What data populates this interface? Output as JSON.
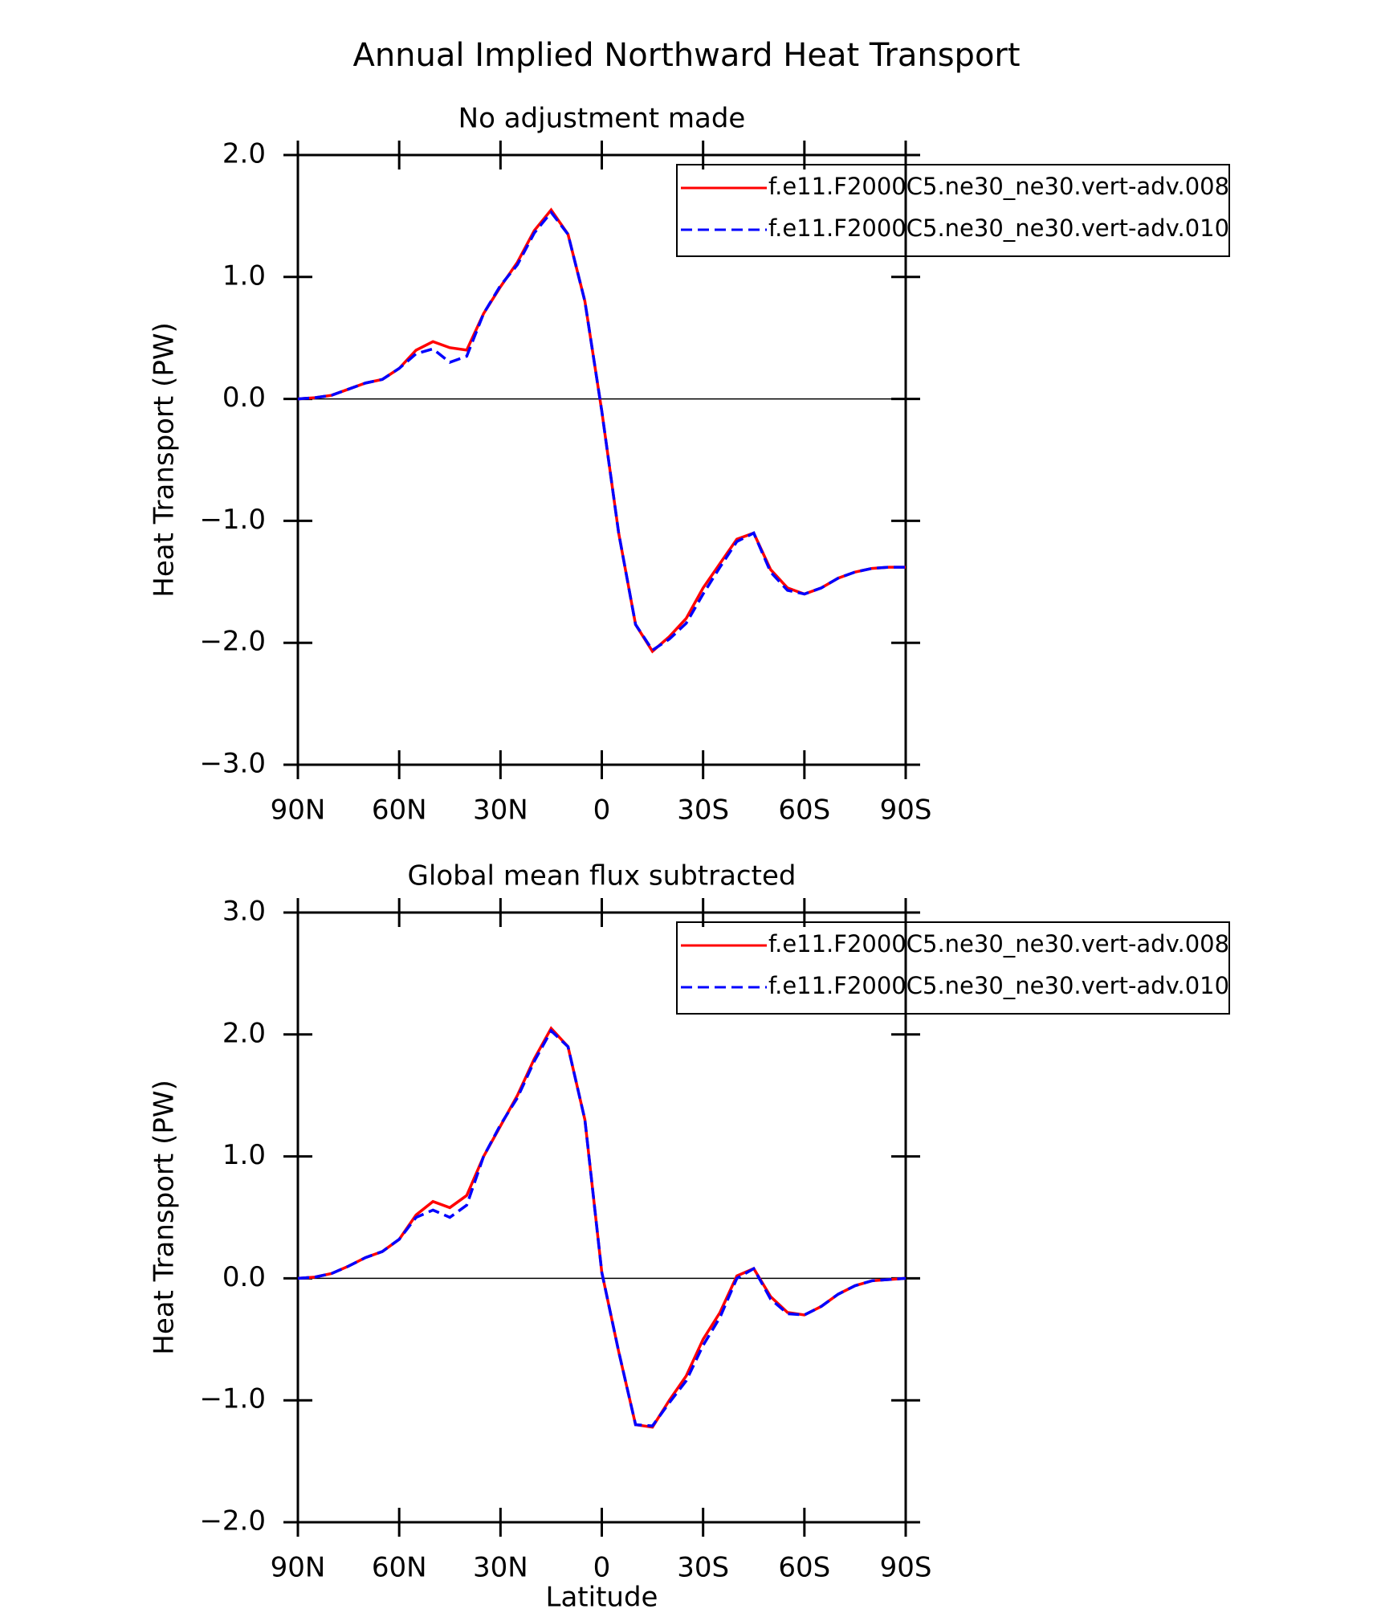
{
  "title": "Annual Implied Northward Heat Transport",
  "chart_data": [
    {
      "type": "line",
      "title": "No adjustment made",
      "ylabel": "Heat Transport (PW)",
      "x": [
        90,
        85,
        80,
        75,
        70,
        65,
        60,
        55,
        50,
        45,
        40,
        35,
        30,
        25,
        20,
        15,
        10,
        5,
        0,
        -5,
        -10,
        -15,
        -20,
        -25,
        -30,
        -35,
        -40,
        -45,
        -50,
        -55,
        -60,
        -65,
        -70,
        -75,
        -80,
        -85,
        -90
      ],
      "series": [
        {
          "name": "f.e11.F2000C5.ne30_ne30.vert-adv.008",
          "color": "#ff0000",
          "dash": false,
          "values": [
            0,
            0.01,
            0.03,
            0.08,
            0.13,
            0.16,
            0.25,
            0.4,
            0.47,
            0.42,
            0.4,
            0.7,
            0.92,
            1.12,
            1.38,
            1.55,
            1.35,
            0.8,
            -0.1,
            -1.1,
            -1.85,
            -2.07,
            -1.95,
            -1.8,
            -1.55,
            -1.35,
            -1.15,
            -1.1,
            -1.4,
            -1.55,
            -1.6,
            -1.55,
            -1.47,
            -1.42,
            -1.39,
            -1.38,
            -1.38
          ]
        },
        {
          "name": "f.e11.F2000C5.ne30_ne30.vert-adv.010",
          "color": "#0000ff",
          "dash": true,
          "values": [
            0,
            0.01,
            0.03,
            0.08,
            0.13,
            0.16,
            0.25,
            0.37,
            0.41,
            0.3,
            0.35,
            0.7,
            0.93,
            1.1,
            1.36,
            1.53,
            1.35,
            0.8,
            -0.1,
            -1.1,
            -1.85,
            -2.06,
            -1.97,
            -1.84,
            -1.6,
            -1.38,
            -1.17,
            -1.1,
            -1.42,
            -1.57,
            -1.6,
            -1.55,
            -1.47,
            -1.42,
            -1.39,
            -1.38,
            -1.38
          ]
        }
      ],
      "xlim": [
        90,
        -90
      ],
      "xticks": [
        {
          "value": 90,
          "label": "90N"
        },
        {
          "value": 60,
          "label": "60N"
        },
        {
          "value": 30,
          "label": "30N"
        },
        0,
        {
          "value": -30,
          "label": "30S"
        },
        {
          "value": -60,
          "label": "60S"
        },
        {
          "value": -90,
          "label": "90S"
        }
      ],
      "ylim": [
        -3,
        2
      ],
      "yticks": [
        {
          "value": -3,
          "label": "−3.0"
        },
        {
          "value": -2,
          "label": "−2.0"
        },
        {
          "value": -1,
          "label": "−1.0"
        },
        {
          "value": 0,
          "label": "0.0"
        },
        {
          "value": 1,
          "label": "1.0"
        },
        {
          "value": 2,
          "label": "2.0"
        }
      ],
      "ref_line": 0,
      "legend": "upper right"
    },
    {
      "type": "line",
      "title": "Global mean flux subtracted",
      "ylabel": "Heat Transport (PW)",
      "xlabel": "Latitude",
      "x": [
        90,
        85,
        80,
        75,
        70,
        65,
        60,
        55,
        50,
        45,
        40,
        35,
        30,
        25,
        20,
        15,
        10,
        5,
        0,
        -5,
        -10,
        -15,
        -20,
        -25,
        -30,
        -35,
        -40,
        -45,
        -50,
        -55,
        -60,
        -65,
        -70,
        -75,
        -80,
        -85,
        -90
      ],
      "series": [
        {
          "name": "f.e11.F2000C5.ne30_ne30.vert-adv.008",
          "color": "#ff0000",
          "dash": false,
          "values": [
            0,
            0.01,
            0.04,
            0.1,
            0.17,
            0.22,
            0.32,
            0.52,
            0.63,
            0.58,
            0.68,
            1.0,
            1.25,
            1.5,
            1.8,
            2.05,
            1.9,
            1.3,
            0.05,
            -0.6,
            -1.2,
            -1.22,
            -1.0,
            -0.8,
            -0.5,
            -0.28,
            0.02,
            0.08,
            -0.15,
            -0.28,
            -0.3,
            -0.23,
            -0.13,
            -0.06,
            -0.02,
            -0.01,
            0
          ]
        },
        {
          "name": "f.e11.F2000C5.ne30_ne30.vert-adv.010",
          "color": "#0000ff",
          "dash": true,
          "values": [
            0,
            0.01,
            0.04,
            0.1,
            0.17,
            0.22,
            0.32,
            0.5,
            0.56,
            0.5,
            0.6,
            1.0,
            1.26,
            1.48,
            1.78,
            2.03,
            1.9,
            1.3,
            0.05,
            -0.6,
            -1.2,
            -1.21,
            -1.02,
            -0.84,
            -0.55,
            -0.32,
            0.0,
            0.08,
            -0.17,
            -0.29,
            -0.3,
            -0.23,
            -0.13,
            -0.06,
            -0.02,
            -0.01,
            0
          ]
        }
      ],
      "xlim": [
        90,
        -90
      ],
      "xticks": [
        {
          "value": 90,
          "label": "90N"
        },
        {
          "value": 60,
          "label": "60N"
        },
        {
          "value": 30,
          "label": "30N"
        },
        0,
        {
          "value": -30,
          "label": "30S"
        },
        {
          "value": -60,
          "label": "60S"
        },
        {
          "value": -90,
          "label": "90S"
        }
      ],
      "ylim": [
        -2,
        3
      ],
      "yticks": [
        {
          "value": -2,
          "label": "−2.0"
        },
        {
          "value": -1,
          "label": "−1.0"
        },
        {
          "value": 0,
          "label": "0.0"
        },
        {
          "value": 1,
          "label": "1.0"
        },
        {
          "value": 2,
          "label": "2.0"
        },
        {
          "value": 3,
          "label": "3.0"
        }
      ],
      "ref_line": 0,
      "legend": "upper right"
    }
  ]
}
